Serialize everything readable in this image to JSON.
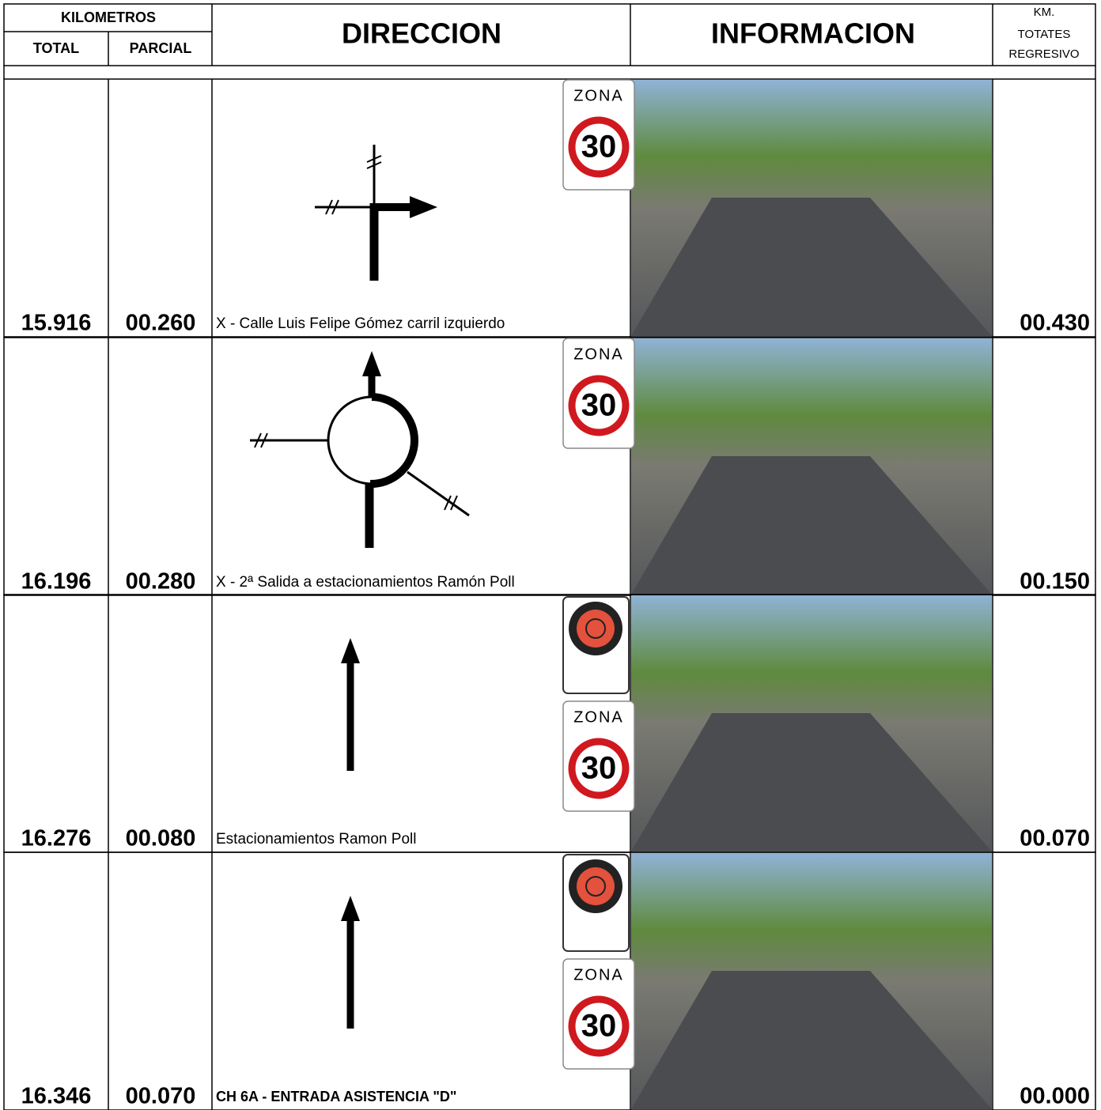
{
  "header": {
    "kilometros": "KILOMETROS",
    "total": "TOTAL",
    "parcial": "PARCIAL",
    "direccion": "DIRECCION",
    "informacion": "INFORMACION",
    "km": [
      "KM.",
      "TOTATES",
      "REGRESIVO"
    ]
  },
  "rows": [
    {
      "total": "15.916",
      "parcial": "00.260",
      "description": "X - Calle Luis Felipe Gómez carril izquierdo",
      "regresivo": "00.430",
      "sign": {
        "word": "ZONA",
        "limit": "30"
      }
    },
    {
      "total": "16.196",
      "parcial": "00.280",
      "description": "X - 2ª Salida a estacionamientos Ramón Poll",
      "regresivo": "00.150",
      "sign": {
        "word": "ZONA",
        "limit": "30"
      }
    },
    {
      "total": "16.276",
      "parcial": "00.080",
      "description": "Estacionamientos Ramon Poll",
      "regresivo": "00.070",
      "sign": {
        "word": "ZONA",
        "limit": "30"
      }
    },
    {
      "total": "16.346",
      "parcial": "00.070",
      "description": "CH 6A - ENTRADA ASISTENCIA \"D\"",
      "regresivo": "00.000",
      "sign": {
        "word": "ZONA",
        "limit": "30"
      }
    }
  ]
}
